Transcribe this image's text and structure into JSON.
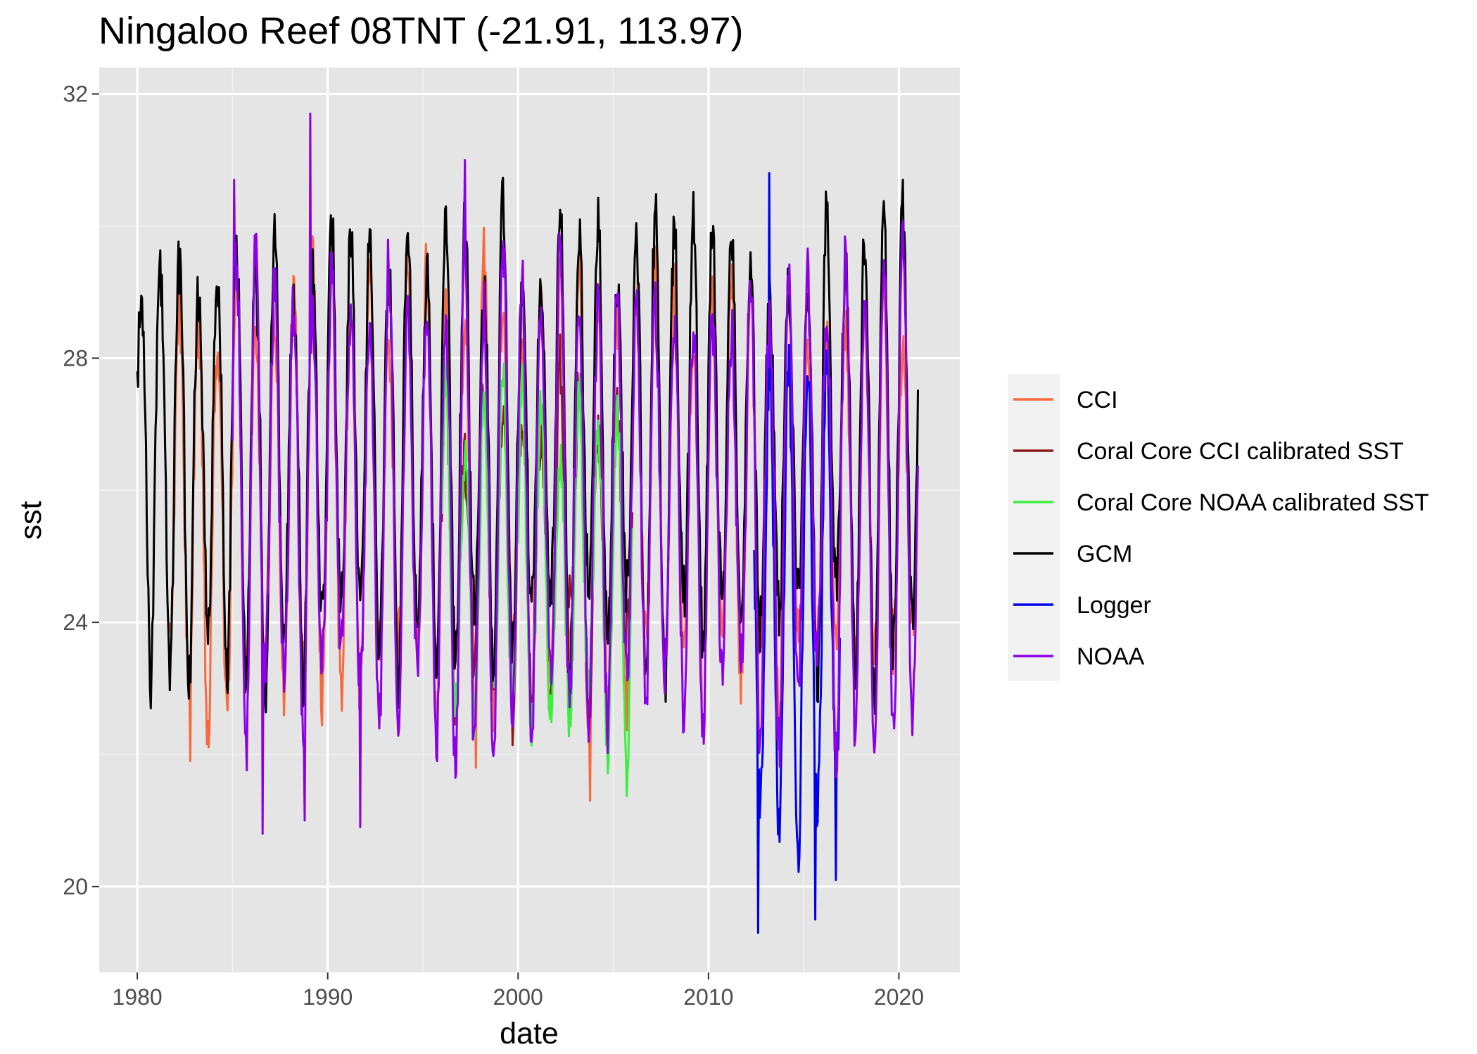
{
  "chart_data": {
    "type": "line",
    "title": "Ningaloo Reef 08TNT (-21.91, 113.97)",
    "xlabel": "date",
    "ylabel": "sst",
    "xlim": [
      1978,
      2023.2
    ],
    "ylim": [
      18.7,
      32.4
    ],
    "x_ticks": [
      1980,
      1990,
      2000,
      2010,
      2020
    ],
    "x_tick_labels": [
      "1980",
      "1990",
      "2000",
      "2010",
      "2020"
    ],
    "y_ticks": [
      20,
      24,
      28,
      32
    ],
    "y_tick_labels": [
      "20",
      "24",
      "28",
      "32"
    ],
    "grid": true,
    "background": "#e5e5e5",
    "legend_position": "right",
    "series": [
      {
        "name": "CCI",
        "color": "#f8693d",
        "x_start": 1981.7,
        "x_end": 2021.0,
        "annual_cycle": {
          "peak_month": 3,
          "min_month": 9,
          "peak": 28.9,
          "trough": 23.1
        },
        "extremes": [
          [
            1982.8,
            21.9
          ],
          [
            2003.8,
            21.3
          ],
          [
            1997.8,
            21.8
          ]
        ]
      },
      {
        "name": "Coral Core CCI calibrated SST",
        "color": "#8b1a1a",
        "x_start": 1996.0,
        "x_end": 2006.0,
        "annual_cycle": {
          "peak_month": 3,
          "min_month": 9,
          "peak": 27.2,
          "trough": 23.4
        }
      },
      {
        "name": "Coral Core NOAA calibrated SST",
        "color": "#3ef03e",
        "x_start": 1996.0,
        "x_end": 2006.0,
        "annual_cycle": {
          "peak_month": 3,
          "min_month": 9,
          "peak": 27.2,
          "trough": 22.4
        }
      },
      {
        "name": "GCM",
        "color": "#000000",
        "x_start": 1980.0,
        "x_end": 2021.0,
        "annual_cycle": {
          "peak_month": 3,
          "min_month": 9,
          "peak": 29.6,
          "trough": 23.8
        },
        "extremes": [
          [
            1980.0,
            27.8
          ],
          [
            1980.7,
            22.7
          ],
          [
            2020.2,
            30.7
          ]
        ]
      },
      {
        "name": "Logger",
        "color": "#0000ee",
        "x_start": 2012.4,
        "x_end": 2016.9,
        "annual_cycle": {
          "peak_month": 3,
          "min_month": 9,
          "peak": 27.4,
          "trough": 21.2
        },
        "extremes": [
          [
            2012.6,
            19.3
          ],
          [
            2013.2,
            30.8
          ],
          [
            2015.6,
            19.5
          ],
          [
            2016.7,
            20.1
          ]
        ]
      },
      {
        "name": "NOAA",
        "color": "#8b00e8",
        "x_start": 1985.0,
        "x_end": 2021.0,
        "annual_cycle": {
          "peak_month": 3,
          "min_month": 9,
          "peak": 29.1,
          "trough": 22.7
        },
        "extremes": [
          [
            1989.1,
            31.7
          ],
          [
            1985.1,
            30.7
          ],
          [
            1997.2,
            31.0
          ],
          [
            1986.6,
            20.8
          ],
          [
            1988.8,
            21.0
          ],
          [
            1991.7,
            20.9
          ]
        ]
      }
    ]
  }
}
